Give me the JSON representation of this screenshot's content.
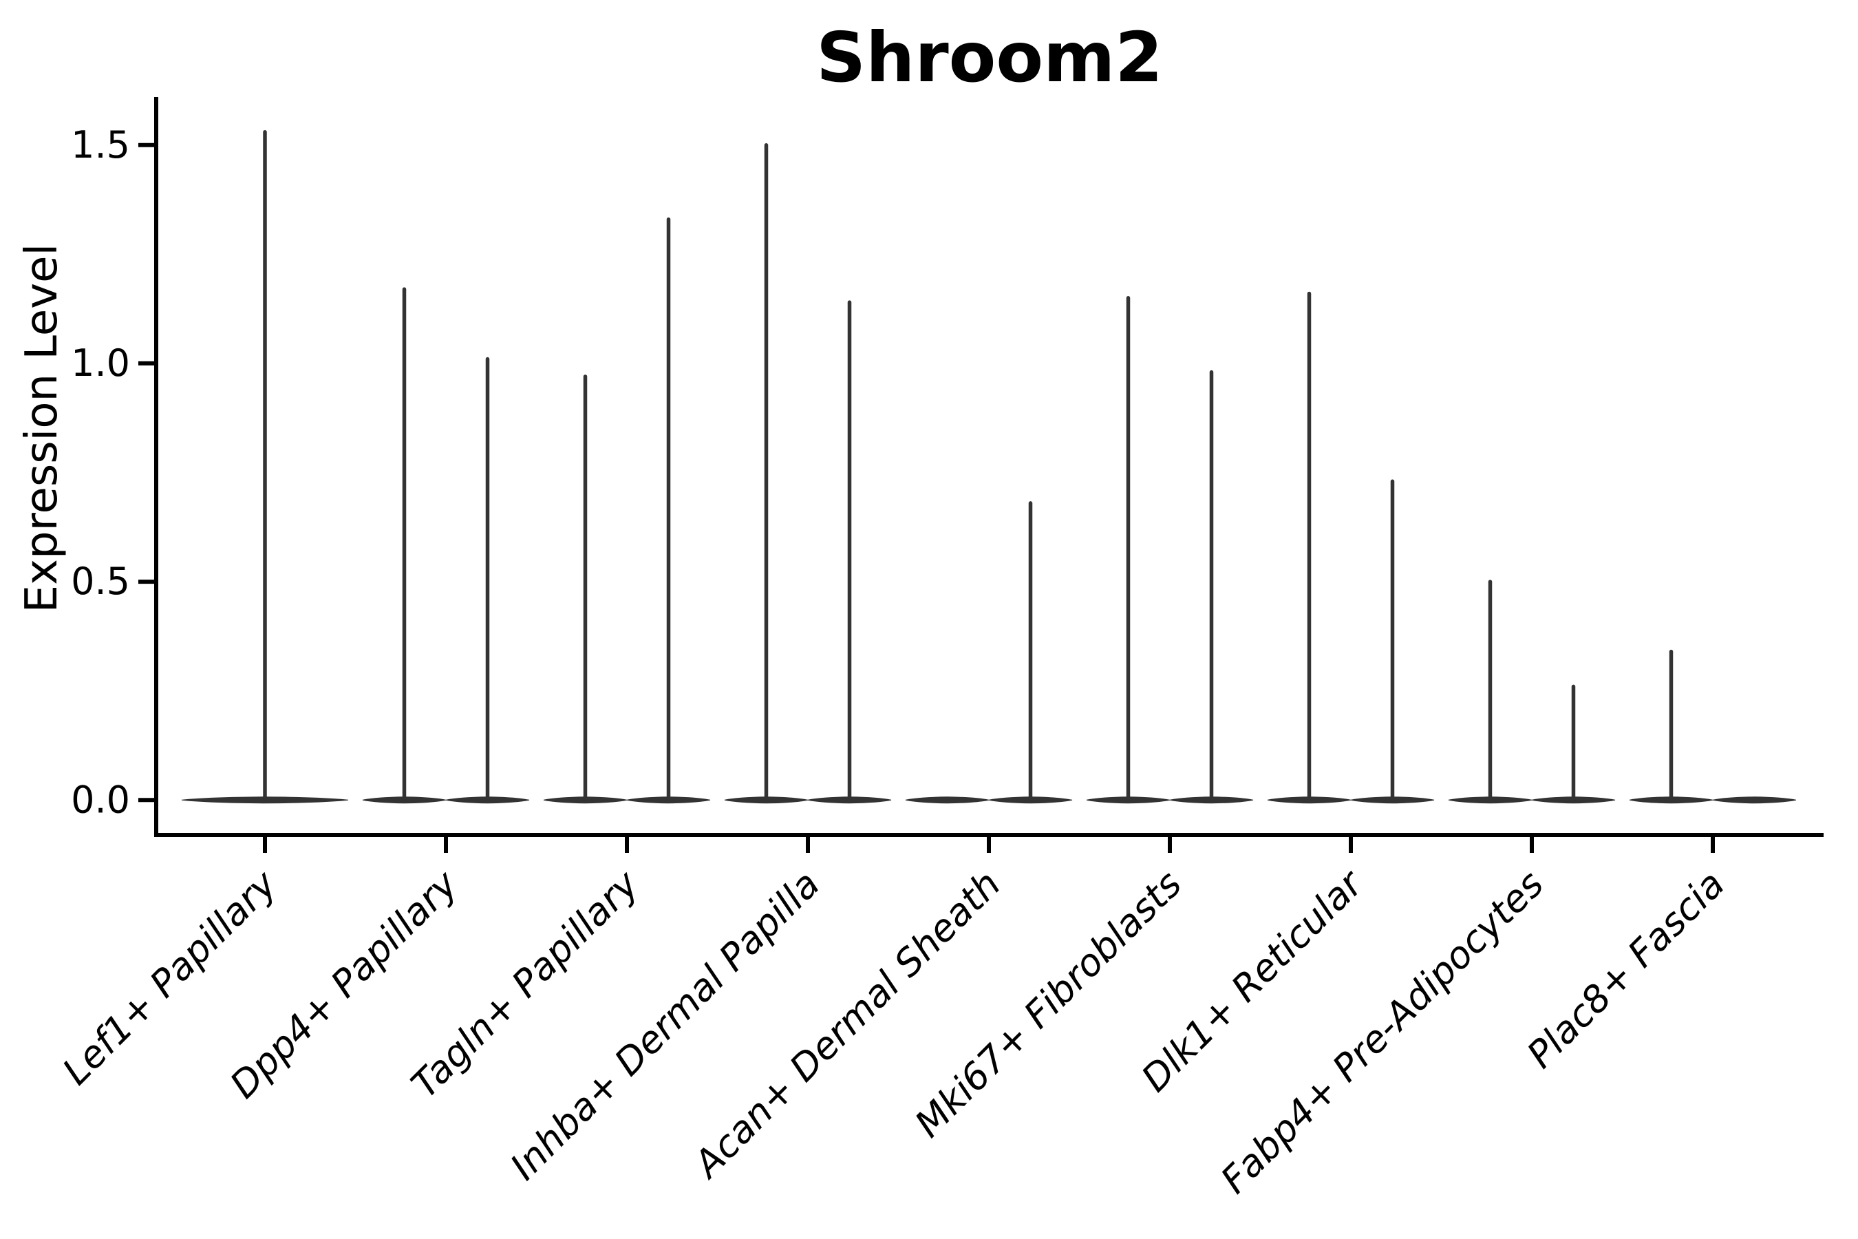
{
  "figure": {
    "title": "Shroom2",
    "background": "#ffffff"
  },
  "chart_data": {
    "type": "violin",
    "title": "Shroom2",
    "xlabel": "",
    "ylabel": "Expression Level",
    "ylim": [
      -0.08,
      1.61
    ],
    "yticks": [
      {
        "value": 0.0,
        "label": "0.0"
      },
      {
        "value": 0.5,
        "label": "0.5"
      },
      {
        "value": 1.0,
        "label": "1.0"
      },
      {
        "value": 1.5,
        "label": "1.5"
      }
    ],
    "grid": false,
    "legend": null,
    "categories": [
      "Lef1+ Papillary",
      "Dpp4+ Papillary",
      "Tagln+ Papillary",
      "Inhba+ Dermal Papilla",
      "Acan+ Dermal Sheath",
      "Mki67+ Fibroblasts",
      "Dlk1+ Reticular",
      "Fabp4+ Pre-Adipocytes",
      "Plac8+ Fascia"
    ],
    "violins": [
      {
        "category": "Lef1+ Papillary",
        "parts": [
          {
            "position": "center",
            "max": 1.53
          }
        ]
      },
      {
        "category": "Dpp4+ Papillary",
        "parts": [
          {
            "position": "left",
            "max": 1.17
          },
          {
            "position": "right",
            "max": 1.01
          }
        ]
      },
      {
        "category": "Tagln+ Papillary",
        "parts": [
          {
            "position": "left",
            "max": 0.97
          },
          {
            "position": "right",
            "max": 1.33
          }
        ]
      },
      {
        "category": "Inhba+ Dermal Papilla",
        "parts": [
          {
            "position": "left",
            "max": 1.5
          },
          {
            "position": "right",
            "max": 1.14
          }
        ]
      },
      {
        "category": "Acan+ Dermal Sheath",
        "parts": [
          {
            "position": "left",
            "max": 0.0
          },
          {
            "position": "right",
            "max": 0.68
          }
        ]
      },
      {
        "category": "Mki67+ Fibroblasts",
        "parts": [
          {
            "position": "left",
            "max": 1.15
          },
          {
            "position": "right",
            "max": 0.98
          }
        ]
      },
      {
        "category": "Dlk1+ Reticular",
        "parts": [
          {
            "position": "left",
            "max": 1.16
          },
          {
            "position": "right",
            "max": 0.73
          }
        ]
      },
      {
        "category": "Fabp4+ Pre-Adipocytes",
        "parts": [
          {
            "position": "left",
            "max": 0.5
          },
          {
            "position": "right",
            "max": 0.26
          }
        ]
      },
      {
        "category": "Plac8+ Fascia",
        "parts": [
          {
            "position": "left",
            "max": 0.34
          },
          {
            "position": "right",
            "max": 0.0
          }
        ]
      }
    ],
    "style": {
      "violin_color": "#333333",
      "spine_color": "#000000",
      "text_color": "#000000",
      "category_labels_italic": true,
      "category_label_rotation_deg": 45
    }
  }
}
